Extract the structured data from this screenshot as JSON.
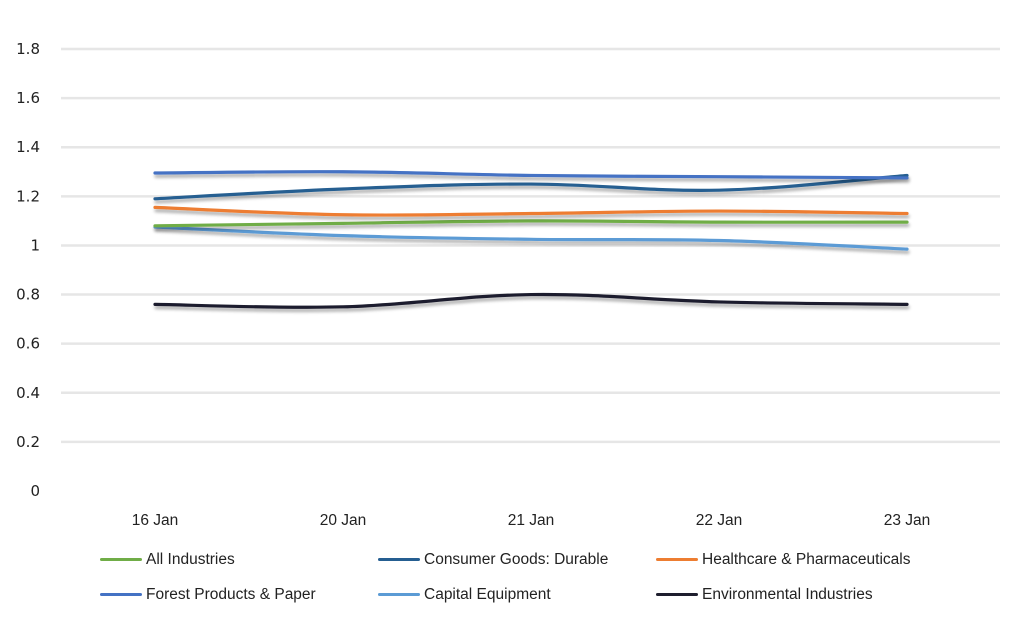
{
  "chart_data": {
    "type": "line",
    "title": "",
    "xlabel": "",
    "ylabel": "",
    "ylim": [
      0,
      1.8
    ],
    "yticks": [
      "0",
      "0.2",
      "0.4",
      "0.6",
      "0.8",
      "1",
      "1.2",
      "1.4",
      "1.6",
      "1.8"
    ],
    "ytick_values": [
      0,
      0.2,
      0.4,
      0.6,
      0.8,
      1,
      1.2,
      1.4,
      1.6,
      1.8
    ],
    "categories": [
      "16 Jan",
      "20 Jan",
      "21 Jan",
      "22 Jan",
      "23 Jan"
    ],
    "grid": true,
    "smooth": true,
    "legend_position": "bottom",
    "series": [
      {
        "name": "All Industries",
        "color": "#70AD47",
        "values": [
          1.08,
          1.09,
          1.1,
          1.095,
          1.095
        ]
      },
      {
        "name": "Consumer Goods: Durable",
        "color": "#255E91",
        "values": [
          1.19,
          1.23,
          1.25,
          1.225,
          1.285
        ]
      },
      {
        "name": "Healthcare & Pharmaceuticals",
        "color": "#ED7D31",
        "values": [
          1.155,
          1.125,
          1.13,
          1.14,
          1.13
        ]
      },
      {
        "name": "Forest Products & Paper",
        "color": "#4472C4",
        "values": [
          1.295,
          1.3,
          1.285,
          1.28,
          1.275
        ]
      },
      {
        "name": "Capital Equipment",
        "color": "#5B9BD5",
        "values": [
          1.075,
          1.04,
          1.025,
          1.02,
          0.985
        ]
      },
      {
        "name": "Environmental Industries",
        "color": "#1E1E2E",
        "values": [
          0.76,
          0.75,
          0.8,
          0.77,
          0.76
        ]
      }
    ]
  }
}
